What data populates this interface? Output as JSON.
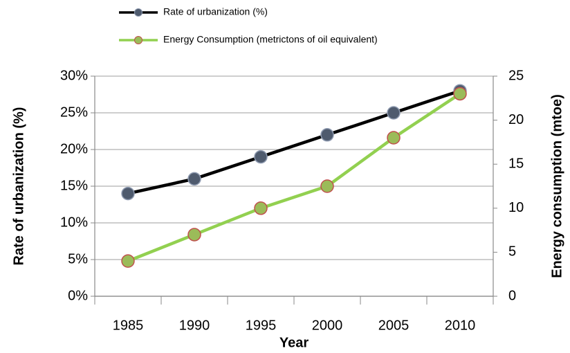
{
  "chart_data": {
    "type": "line",
    "x_label": "Year",
    "y_label": "Rate of urbanization (%)",
    "y2_label": "Energy consumption (mtoe)",
    "categories": [
      "1985",
      "1990",
      "1995",
      "2000",
      "2005",
      "2010"
    ],
    "series": [
      {
        "name": "Rate of urbanization (%)",
        "color": "#000000",
        "marker_color": "#4f5b6e",
        "marker_edge": "#8e9ab0",
        "values": [
          14,
          16,
          19,
          22,
          25,
          28
        ]
      },
      {
        "name": "Energy Consumption (metrictons of oil equivalent)",
        "color": "#92d050",
        "marker_color": "#9bbb59",
        "marker_edge": "#c0504d",
        "axis": "y2",
        "values": [
          4,
          7,
          10,
          12.5,
          18,
          23
        ]
      }
    ],
    "ylim": [
      0,
      30
    ],
    "yticks": [
      {
        "value": 0,
        "label": "0%"
      },
      {
        "value": 5,
        "label": "5%"
      },
      {
        "value": 10,
        "label": "10%"
      },
      {
        "value": 15,
        "label": "15%"
      },
      {
        "value": 20,
        "label": "20%"
      },
      {
        "value": 25,
        "label": "25%"
      },
      {
        "value": 30,
        "label": "30%"
      }
    ],
    "y2lim": [
      0,
      25
    ],
    "y2ticks": [
      0,
      5,
      10,
      15,
      20,
      25
    ],
    "grid": true,
    "legend": "top"
  }
}
